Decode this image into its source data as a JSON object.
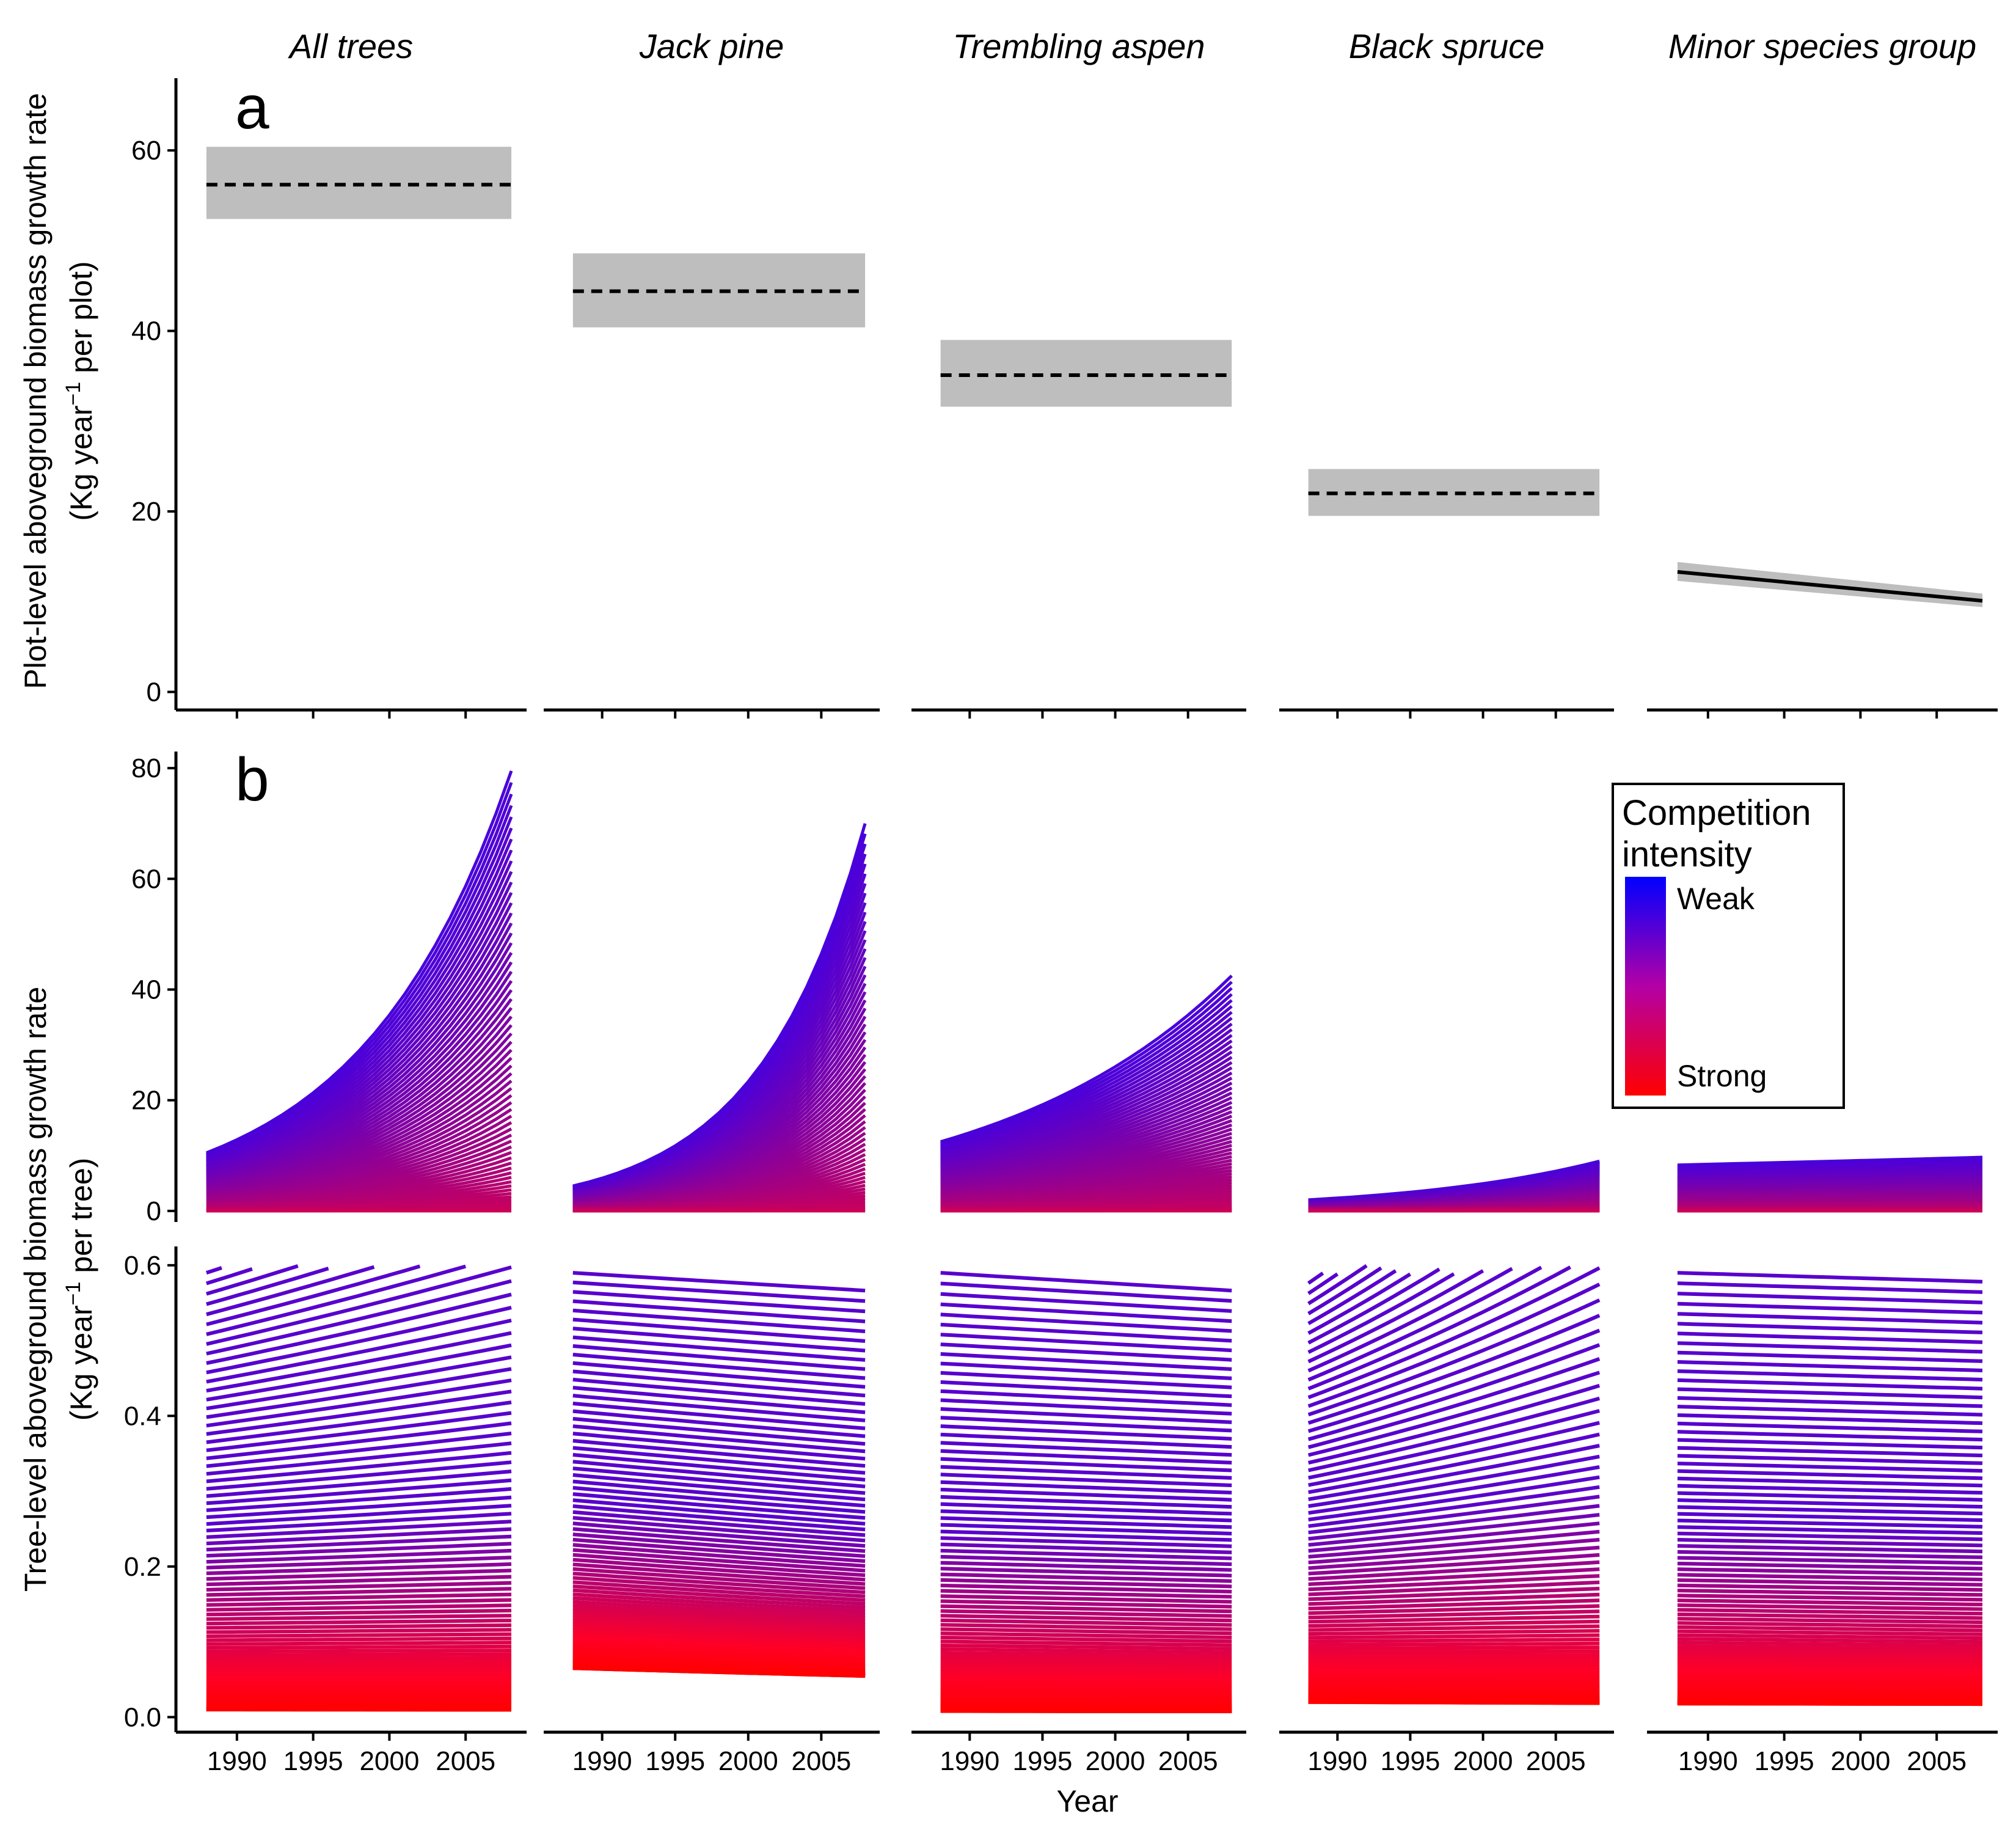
{
  "facets": [
    "All trees",
    "Jack pine",
    "Trembling aspen",
    "Black spruce",
    "Minor species group"
  ],
  "x_axis": {
    "label": "Year",
    "range": [
      1986,
      2009
    ],
    "ticks": [
      1990,
      1995,
      2000,
      2005
    ],
    "tick_labels": [
      "1990",
      "1995",
      "2000",
      "2005"
    ]
  },
  "panel_labels": [
    "a",
    "b"
  ],
  "y_labels": {
    "a_line1": "Plot-level aboveground biomass growth rate",
    "a_line2": "(Kg year",
    "a_sup": "−1",
    "a_line2_end": " per plot)",
    "b_line1": "Tree-level aboveground biomass growth rate",
    "b_line2": "(Kg year",
    "b_sup": "−1",
    "b_line2_end": " per tree)"
  },
  "colors": {
    "weak": "#0000ff",
    "strong": "#ff0000",
    "ribbon": "#bebebe",
    "line": "#000000"
  },
  "legend": {
    "title_line1": "Competition",
    "title_line2": "intensity",
    "weak_label": "Weak",
    "strong_label": "Strong"
  },
  "chart_data": [
    {
      "panel": "a",
      "type": "line",
      "ylim": [
        -2,
        68
      ],
      "y_ticks": [
        0,
        20,
        40,
        60
      ],
      "x_range": [
        1988,
        2008
      ],
      "series": [
        {
          "facet": "All trees",
          "x": [
            1988,
            2008
          ],
          "y": [
            56.2,
            56.2
          ],
          "lower": [
            52.4,
            52.4
          ],
          "upper": [
            60.4,
            60.4
          ],
          "linetype": "dashed"
        },
        {
          "facet": "Jack pine",
          "x": [
            1988,
            2008
          ],
          "y": [
            44.4,
            44.4
          ],
          "lower": [
            40.4,
            40.4
          ],
          "upper": [
            48.6,
            48.6
          ],
          "linetype": "dashed"
        },
        {
          "facet": "Trembling aspen",
          "x": [
            1988,
            2008
          ],
          "y": [
            35.1,
            35.1
          ],
          "lower": [
            31.6,
            31.6
          ],
          "upper": [
            39.0,
            39.0
          ],
          "linetype": "dashed"
        },
        {
          "facet": "Black spruce",
          "x": [
            1988,
            2008
          ],
          "y": [
            22.0,
            22.0
          ],
          "lower": [
            19.5,
            19.5
          ],
          "upper": [
            24.7,
            24.7
          ],
          "linetype": "dashed"
        },
        {
          "facet": "Minor species group",
          "x": [
            1988,
            2008
          ],
          "y": [
            13.3,
            10.1
          ],
          "lower": [
            12.3,
            9.4
          ],
          "upper": [
            14.4,
            10.9
          ],
          "linetype": "solid"
        }
      ]
    },
    {
      "panel": "b-upper",
      "type": "line",
      "ylim": [
        -2,
        83
      ],
      "y_ticks": [
        0,
        20,
        40,
        60,
        80
      ],
      "x_range": [
        1988,
        2008
      ],
      "description_of_series": "family of curves, one per competition intensity level, colour from weak (blue) to strong (red)",
      "series": [
        {
          "facet": "All trees",
          "weakest_start": 10.5,
          "weakest_end": 79.5
        },
        {
          "facet": "Jack pine",
          "weakest_start": 4.5,
          "weakest_end": 70.0
        },
        {
          "facet": "Trembling aspen",
          "weakest_start": 12.5,
          "weakest_end": 42.5
        },
        {
          "facet": "Black spruce",
          "weakest_start": 2.0,
          "weakest_end": 9.0
        },
        {
          "facet": "Minor species group",
          "weakest_start": 8.3,
          "weakest_end": 9.7
        }
      ]
    },
    {
      "panel": "b-lower",
      "type": "line",
      "ylim": [
        -0.02,
        0.625
      ],
      "y_ticks": [
        0.0,
        0.2,
        0.4,
        0.6
      ],
      "y_tick_labels": [
        "0.0",
        "0.2",
        "0.4",
        "0.6"
      ],
      "x_range": [
        1988,
        2008
      ],
      "series": [
        {
          "facet": "All trees",
          "strongest_start": 0.01,
          "strongest_end": 0.0,
          "rate_top": 0.25,
          "rate_bottom": -0.02
        },
        {
          "facet": "Jack pine",
          "strongest_start": 0.065,
          "strongest_end": 0.003,
          "rate_top": -0.04,
          "rate_bottom": -0.16
        },
        {
          "facet": "Trembling aspen",
          "strongest_start": 0.008,
          "strongest_end": 0.0,
          "rate_top": -0.04,
          "rate_bottom": -0.05
        },
        {
          "facet": "Black spruce",
          "strongest_start": 0.02,
          "strongest_end": 0.005,
          "rate_top": 0.6,
          "rate_bottom": -0.07
        },
        {
          "facet": "Minor species group",
          "strongest_start": 0.018,
          "strongest_end": 0.008,
          "rate_top": -0.02,
          "rate_bottom": -0.04
        }
      ]
    }
  ]
}
